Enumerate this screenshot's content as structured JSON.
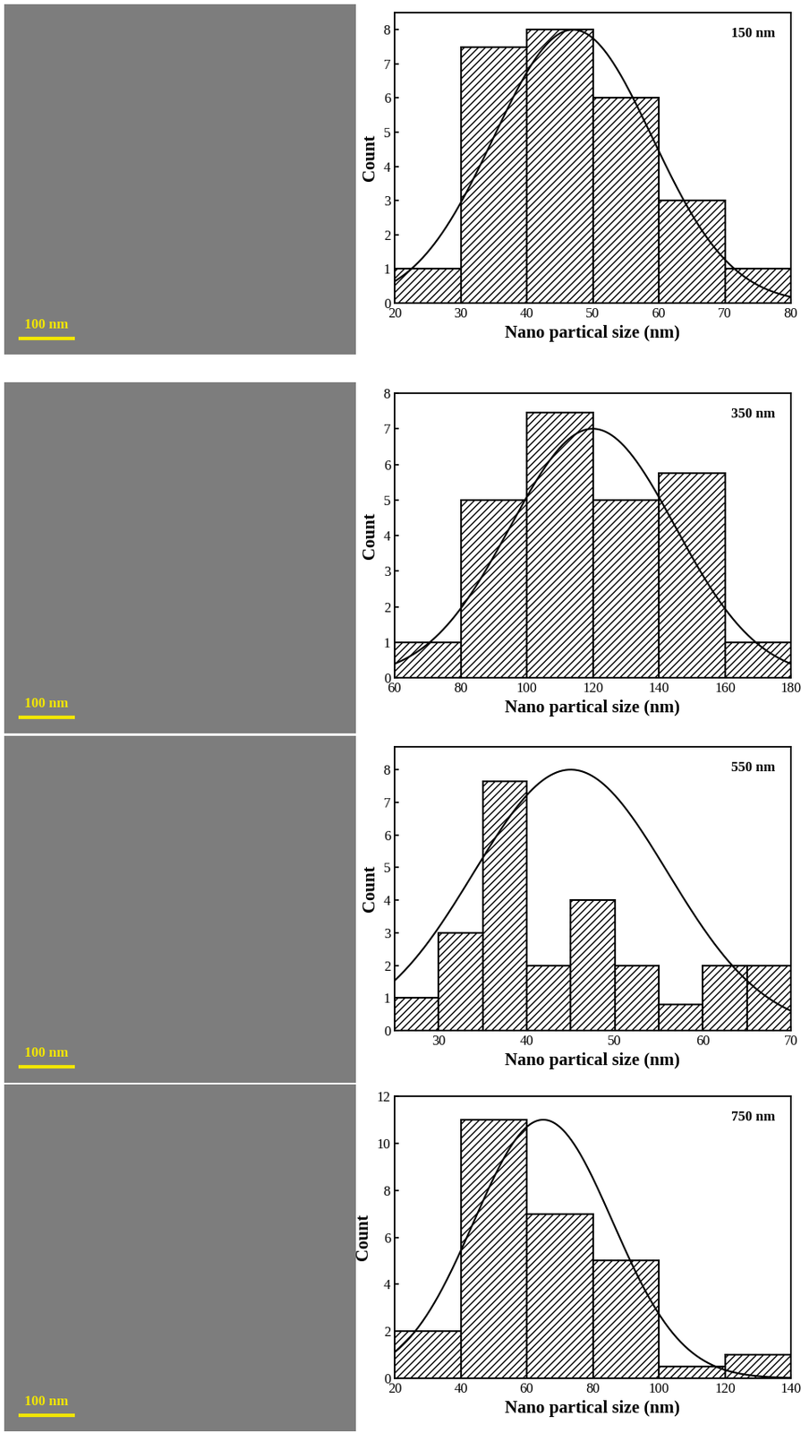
{
  "sem_images": [
    {
      "scale_bar": "100 nm"
    },
    {
      "scale_bar": "100 nm"
    },
    {
      "scale_bar": "100 nm"
    },
    {
      "scale_bar": "100 nm"
    }
  ],
  "chart_data": [
    {
      "type": "histogram",
      "annotation": "150 nm",
      "x_label": "Nano partical size (nm)",
      "y_label": "Count",
      "bins": [
        20,
        30,
        40,
        50,
        60,
        70,
        80
      ],
      "counts": [
        1,
        7.5,
        8,
        6,
        3,
        1
      ],
      "fit": {
        "mean": 47,
        "sd": 12,
        "peak": 8
      },
      "xlim": [
        20,
        80
      ],
      "xticks": [
        20,
        30,
        40,
        50,
        60,
        70,
        80
      ],
      "ylim": [
        0,
        8.5
      ],
      "yticks": [
        0,
        1,
        2,
        3,
        4,
        5,
        6,
        7,
        8
      ]
    },
    {
      "type": "histogram",
      "annotation": "350 nm",
      "x_label": "Nano partical size (nm)",
      "y_label": "Count",
      "bins": [
        60,
        80,
        100,
        120,
        140,
        160,
        180
      ],
      "counts": [
        1,
        5,
        7.45,
        5,
        5.75,
        1
      ],
      "fit": {
        "mean": 120,
        "sd": 25,
        "peak": 7
      },
      "xlim": [
        60,
        180
      ],
      "xticks": [
        60,
        80,
        100,
        120,
        140,
        160,
        180
      ],
      "ylim": [
        0,
        8
      ],
      "yticks": [
        0,
        1,
        2,
        3,
        4,
        5,
        6,
        7,
        8
      ]
    },
    {
      "type": "histogram",
      "annotation": "550 nm",
      "x_label": "Nano partical size (nm)",
      "y_label": "Count",
      "bins": [
        25,
        30,
        35,
        40,
        45,
        50,
        55,
        60,
        65,
        70
      ],
      "counts": [
        1,
        3,
        7.65,
        2,
        4,
        2,
        0.8,
        2,
        2
      ],
      "fit": {
        "mean": 45,
        "sd": 11,
        "peak": 8
      },
      "xlim": [
        25,
        70
      ],
      "xticks": [
        30,
        40,
        50,
        60,
        70
      ],
      "ylim": [
        0,
        8.7
      ],
      "yticks": [
        0,
        1,
        2,
        3,
        4,
        5,
        6,
        7,
        8
      ]
    },
    {
      "type": "histogram",
      "annotation": "750 nm",
      "x_label": "Nano partical size (nm)",
      "y_label": "Count",
      "bins": [
        20,
        40,
        60,
        80,
        100,
        120,
        140
      ],
      "counts": [
        2,
        11,
        7,
        5,
        0.5,
        1
      ],
      "fit": {
        "mean": 65,
        "sd": 21,
        "peak": 11
      },
      "xlim": [
        20,
        140
      ],
      "xticks": [
        20,
        40,
        60,
        80,
        100,
        120,
        140
      ],
      "ylim": [
        0,
        12
      ],
      "yticks": [
        0,
        2,
        4,
        6,
        8,
        10,
        12
      ]
    }
  ]
}
